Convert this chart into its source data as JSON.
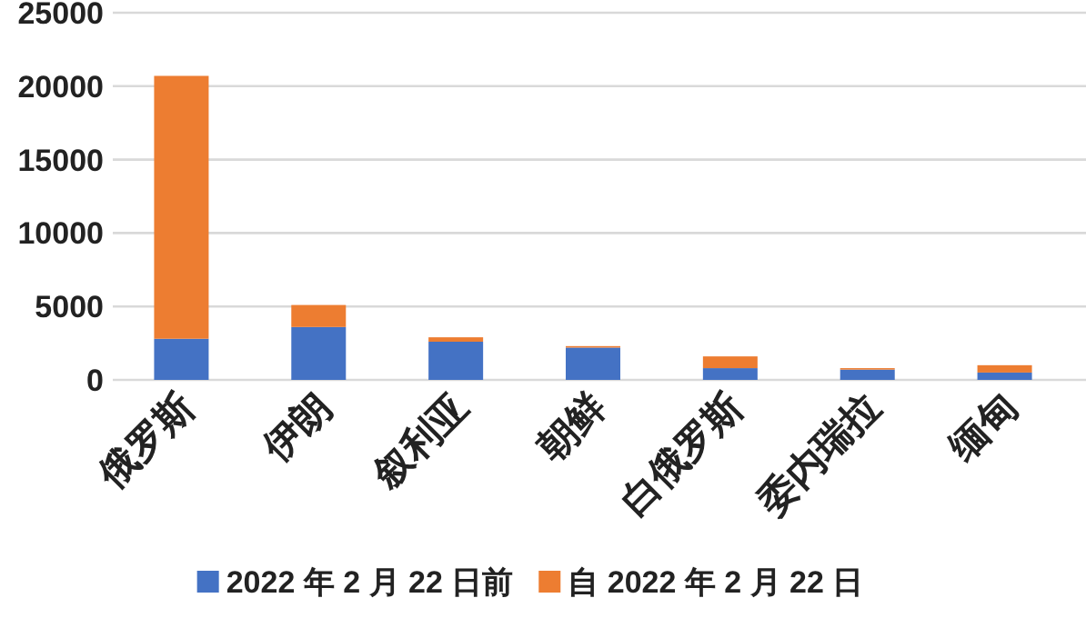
{
  "chart_data": {
    "type": "bar",
    "stacked": true,
    "categories": [
      "俄罗斯",
      "伊朗",
      "叙利亚",
      "朝鲜",
      "白俄罗斯",
      "委内瑞拉",
      "缅甸"
    ],
    "series": [
      {
        "name": "2022 年 2 月 22 日前",
        "color": "#4472c4",
        "values": [
          2800,
          3600,
          2600,
          2200,
          800,
          700,
          500
        ]
      },
      {
        "name": "自 2022 年 2 月 22 日",
        "color": "#ed7d31",
        "values": [
          17900,
          1500,
          300,
          100,
          800,
          100,
          500
        ]
      }
    ],
    "ylim": [
      0,
      25000
    ],
    "yticks": [
      0,
      5000,
      10000,
      15000,
      20000,
      25000
    ],
    "grid": "y",
    "legend": "bottom"
  }
}
